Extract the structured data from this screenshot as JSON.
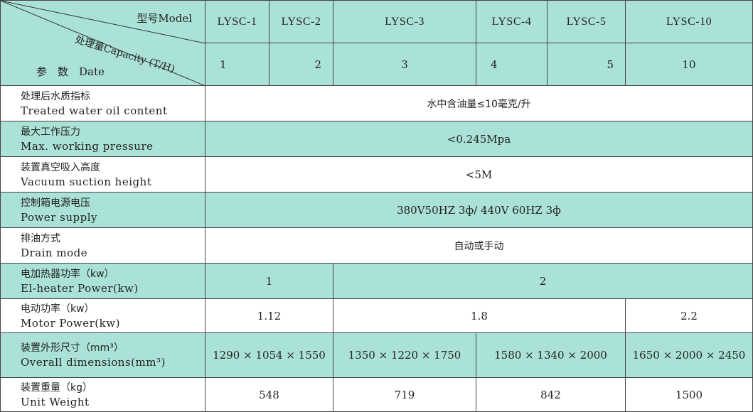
{
  "header": {
    "model_label": "型号Model",
    "capacity_label": "处理量Capacity (T/H)",
    "param_label": "参　数　Date",
    "models": [
      "LYSC-1",
      "LYSC-2",
      "LYSC-3",
      "LYSC-4",
      "LYSC-5",
      "LYSC-10"
    ],
    "capacities": [
      "1",
      "2",
      "3",
      "4",
      "5",
      "10"
    ]
  },
  "rows": [
    {
      "cn": "处理后水质指标",
      "en": "Treated water oil content",
      "values": [
        "水中含油量≤10毫克/升"
      ]
    },
    {
      "cn": "最大工作压力",
      "en": "Max. working pressure",
      "values": [
        "<0.245Mpa"
      ]
    },
    {
      "cn": "装置真空吸入高度",
      "en": "Vacuum suction height",
      "values": [
        "<5M"
      ]
    },
    {
      "cn": "控制箱电源电压",
      "en": "Power supply",
      "values": [
        "380V50HZ 3ф/ 440V 60HZ 3ф"
      ]
    },
    {
      "cn": "排油方式",
      "en": "Drain mode",
      "values": [
        "自动或手动"
      ]
    },
    {
      "cn": "电加热器功率（kw）",
      "en": "El-heater Power(kw)",
      "values": [
        "1",
        "2"
      ]
    },
    {
      "cn": "电动功率（kw）",
      "en": "Motor Power(kw)",
      "values": [
        "1.12",
        "1.8",
        "2.2"
      ]
    },
    {
      "cn": "装置外形尺寸（mm³）",
      "en": "Overall dimensions(mm³)",
      "values": [
        "1290 × 1054 × 1550",
        "1350 × 1220 × 1750",
        "1580 × 1340 × 2000",
        "1650 × 2000 × 2450"
      ]
    },
    {
      "cn": "装置重量（kg）",
      "en": "Unit Weight",
      "values": [
        "548",
        "719",
        "842",
        "1500"
      ]
    }
  ],
  "colors": {
    "teal": "#abe2d8",
    "white": "#ffffff",
    "border": "#444444"
  }
}
